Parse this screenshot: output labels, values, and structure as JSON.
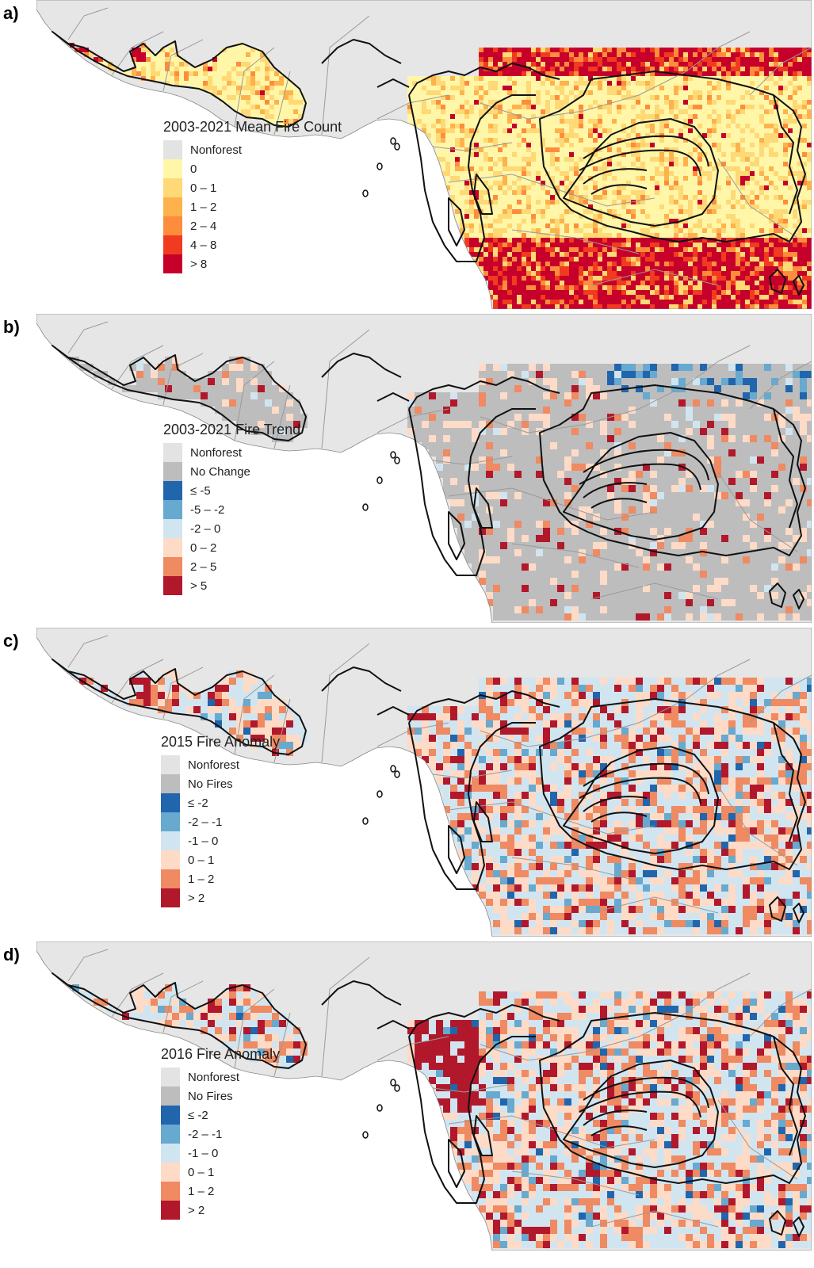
{
  "colors": {
    "ocean": "#ffffff",
    "land": "#e6e6e6",
    "border": "#9a9a9a",
    "outline": "#111111"
  },
  "panels": [
    {
      "id": "a",
      "label": "a)",
      "style": "fine",
      "legend": {
        "title": "2003-2021 Mean Fire Count",
        "items": [
          {
            "label": "Nonforest",
            "color": "#e3e3e3"
          },
          {
            "label": "0",
            "color": "#fff6a8"
          },
          {
            "label": "0 – 1",
            "color": "#fed976"
          },
          {
            "label": "1 – 2",
            "color": "#feb24c"
          },
          {
            "label": "2 – 4",
            "color": "#fd8d3c"
          },
          {
            "label": "4 – 8",
            "color": "#f03b20"
          },
          {
            "label": "> 8",
            "color": "#c6002a"
          }
        ]
      }
    },
    {
      "id": "b",
      "label": "b)",
      "style": "trend",
      "legend": {
        "title": "2003-2021 Fire Trend",
        "items": [
          {
            "label": "Nonforest",
            "color": "#e3e3e3"
          },
          {
            "label": "No Change",
            "color": "#bdbdbd"
          },
          {
            "label": "≤ -5",
            "color": "#2166ac"
          },
          {
            "label": "-5 – -2",
            "color": "#67a9cf"
          },
          {
            "label": "-2 – 0",
            "color": "#d1e5f0"
          },
          {
            "label": "0 – 2",
            "color": "#fddbc7"
          },
          {
            "label": "2 – 5",
            "color": "#ef8a62"
          },
          {
            "label": "> 5",
            "color": "#b2182b"
          }
        ]
      }
    },
    {
      "id": "c",
      "label": "c)",
      "style": "anomaly2015",
      "legend": {
        "title": "2015 Fire Anomaly",
        "items": [
          {
            "label": "Nonforest",
            "color": "#e3e3e3"
          },
          {
            "label": "No Fires",
            "color": "#bdbdbd"
          },
          {
            "label": "≤ -2",
            "color": "#2166ac"
          },
          {
            "label": "-2 – -1",
            "color": "#67a9cf"
          },
          {
            "label": "-1 – 0",
            "color": "#d1e5f0"
          },
          {
            "label": "0 – 1",
            "color": "#fddbc7"
          },
          {
            "label": "1 – 2",
            "color": "#ef8a62"
          },
          {
            "label": "> 2",
            "color": "#b2182b"
          }
        ]
      }
    },
    {
      "id": "d",
      "label": "d)",
      "style": "anomaly2016",
      "legend": {
        "title": "2016 Fire Anomaly",
        "items": [
          {
            "label": "Nonforest",
            "color": "#e3e3e3"
          },
          {
            "label": "No Fires",
            "color": "#bdbdbd"
          },
          {
            "label": "≤ -2",
            "color": "#2166ac"
          },
          {
            "label": "-2 – -1",
            "color": "#67a9cf"
          },
          {
            "label": "-1 – 0",
            "color": "#d1e5f0"
          },
          {
            "label": "0 – 1",
            "color": "#fddbc7"
          },
          {
            "label": "1 – 2",
            "color": "#ef8a62"
          },
          {
            "label": "> 2",
            "color": "#b2182b"
          }
        ]
      }
    }
  ]
}
